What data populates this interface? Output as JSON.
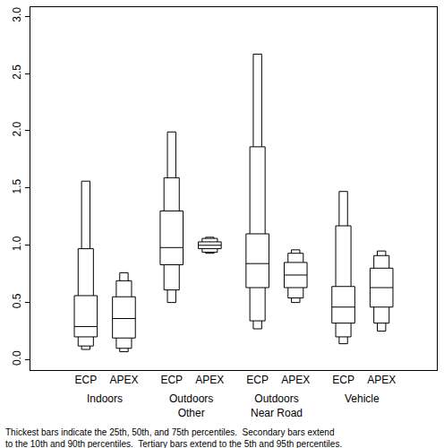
{
  "chart_data": {
    "type": "percentile_box",
    "color": "#000000",
    "ylim": [
      -0.09,
      3.08
    ],
    "yticks": [
      {
        "value": 0,
        "label": "0.0"
      },
      {
        "value": 0.5,
        "label": "0.5"
      },
      {
        "value": 1,
        "label": "1.0"
      },
      {
        "value": 1.5,
        "label": "1.5"
      },
      {
        "value": 2,
        "label": "2.0"
      },
      {
        "value": 2.5,
        "label": "2.5"
      },
      {
        "value": 3,
        "label": "3.0"
      }
    ],
    "grid": false,
    "groups": [
      {
        "label": [
          "Indoors"
        ],
        "boxes": [
          {
            "category": "ECP",
            "p5": 0.09,
            "p10": 0.12,
            "p25": 0.2,
            "p50": 0.29,
            "p75": 0.56,
            "p90": 0.97,
            "p95": 1.56
          },
          {
            "category": "APEX",
            "p5": 0.07,
            "p10": 0.1,
            "p25": 0.19,
            "p50": 0.36,
            "p75": 0.55,
            "p90": 0.69,
            "p95": 0.76
          }
        ]
      },
      {
        "label": [
          "Outdoors",
          "Other"
        ],
        "boxes": [
          {
            "category": "ECP",
            "p5": 0.5,
            "p10": 0.61,
            "p25": 0.83,
            "p50": 0.98,
            "p75": 1.3,
            "p90": 1.59,
            "p95": 1.99
          },
          {
            "category": "APEX",
            "p5": 0.93,
            "p10": 0.94,
            "p25": 0.97,
            "p50": 1.0,
            "p75": 1.03,
            "p90": 1.06,
            "p95": 1.07
          }
        ]
      },
      {
        "label": [
          "Outdoors",
          "Near Road"
        ],
        "boxes": [
          {
            "category": "ECP",
            "p5": 0.27,
            "p10": 0.34,
            "p25": 0.63,
            "p50": 0.84,
            "p75": 1.1,
            "p90": 1.86,
            "p95": 2.67
          },
          {
            "category": "APEX",
            "p5": 0.5,
            "p10": 0.54,
            "p25": 0.63,
            "p50": 0.74,
            "p75": 0.85,
            "p90": 0.93,
            "p95": 0.96
          }
        ]
      },
      {
        "label": [
          "Vehicle"
        ],
        "boxes": [
          {
            "category": "ECP",
            "p5": 0.14,
            "p10": 0.2,
            "p25": 0.32,
            "p50": 0.46,
            "p75": 0.64,
            "p90": 1.17,
            "p95": 1.47
          },
          {
            "category": "APEX",
            "p5": 0.25,
            "p10": 0.32,
            "p25": 0.46,
            "p50": 0.63,
            "p75": 0.8,
            "p90": 0.91,
            "p95": 0.95
          }
        ]
      }
    ],
    "note": [
      "Thickest bars indicate the 25th, 50th, and 75th percentiles.  Secondary bars extend",
      "to the 10th and 90th percentiles.  Tertiary bars extend to the 5th and 95th percentiles."
    ]
  }
}
